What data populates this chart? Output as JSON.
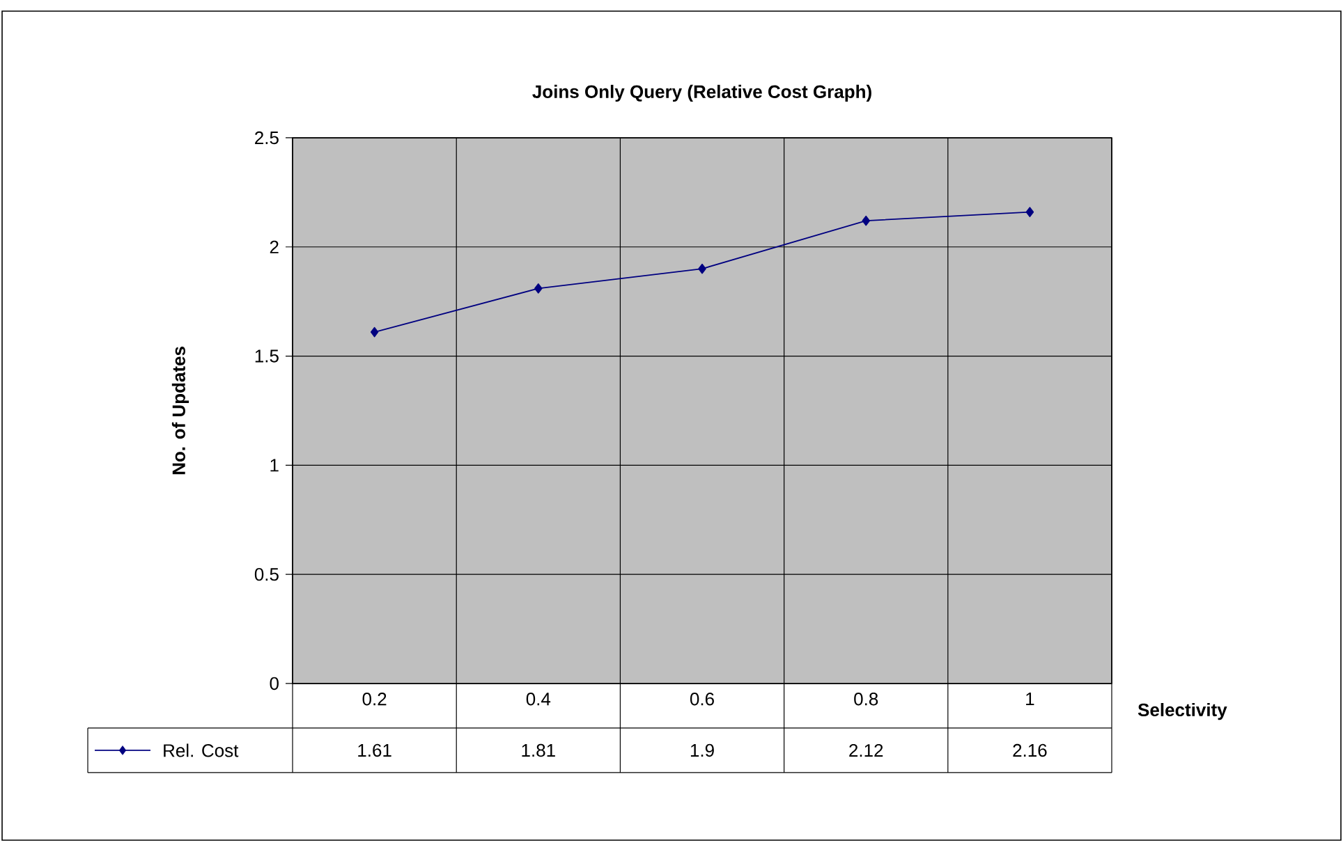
{
  "chart_data": {
    "type": "line",
    "title": "Joins Only Query (Relative Cost Graph)",
    "xlabel": "Selectivity",
    "ylabel": "No. of Updates",
    "categories": [
      "0.2",
      "0.4",
      "0.6",
      "0.8",
      "1"
    ],
    "series": [
      {
        "name": "Rel. Cost",
        "color": "#000080",
        "values": [
          1.61,
          1.81,
          1.9,
          2.12,
          2.16
        ]
      }
    ],
    "ylim": [
      0,
      2.5
    ],
    "yticks": [
      0,
      0.5,
      1,
      1.5,
      2,
      2.5
    ],
    "grid": true,
    "legend": "bottom",
    "data_labels": true,
    "marker": "diamond",
    "line_style": "solid"
  }
}
